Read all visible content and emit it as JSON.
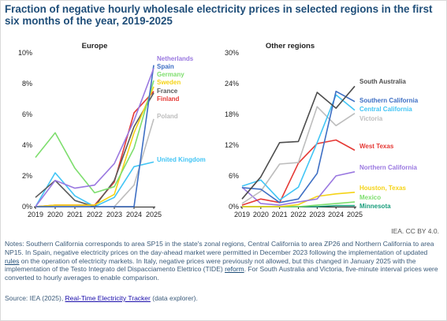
{
  "title": "Fraction of negative hourly wholesale electricity prices in selected regions in the first six months of the year, 2019-2025",
  "credit": "IEA. CC BY 4.0.",
  "notes": {
    "p1": "Notes: Southern California corresponds to area SP15 in the state's zonal regions, Central California to area ZP26 and Northern California to area NP15. In Spain, negative electricity prices on the day-ahead market were permitted in December 2023 following the implementation of updated ",
    "link1": "rules",
    "p2": " on the operation of electricity markets. In Italy, negative prices were previously not allowed, but this changed in January 2025 with the implementation of the Testo Integrato del Dispacciamento Elettrico (TIDE) ",
    "link2": "reform",
    "p3": ". For South Australia and Victoria, five-minute interval prices were converted to hourly averages to enable comparison."
  },
  "source": {
    "prefix": "Source: IEA (2025), ",
    "link": "Real-Time Electricity Tracker",
    "suffix": " (data explorer)."
  },
  "chart_data": [
    {
      "type": "line",
      "title": "Europe",
      "x": [
        2019,
        2020,
        2021,
        2022,
        2023,
        2024,
        2025
      ],
      "ylim": [
        0,
        10
      ],
      "yticks": [
        0,
        2,
        4,
        6,
        8,
        10
      ],
      "ytick_labels": [
        "0%",
        "2%",
        "4%",
        "6%",
        "8%",
        "10%"
      ],
      "y_unit": "%",
      "series": [
        {
          "name": "Netherlands",
          "color": "#9a78e0",
          "values": [
            0.0,
            1.7,
            1.2,
            1.4,
            2.8,
            5.6,
            9.0
          ]
        },
        {
          "name": "Spain",
          "color": "#3e6fc4",
          "values": [
            0.0,
            0.0,
            0.0,
            0.0,
            0.0,
            0.0,
            9.2
          ]
        },
        {
          "name": "Germany",
          "color": "#7ede6e",
          "values": [
            3.2,
            4.8,
            2.5,
            0.9,
            1.3,
            3.8,
            8.2
          ]
        },
        {
          "name": "Sweden",
          "color": "#f5d316",
          "values": [
            0.0,
            0.1,
            0.1,
            0.1,
            0.8,
            4.8,
            7.8
          ]
        },
        {
          "name": "France",
          "color": "#5a5a5a",
          "values": [
            0.6,
            1.7,
            0.4,
            0.0,
            1.7,
            5.2,
            7.4
          ]
        },
        {
          "name": "Finland",
          "color": "#e53935",
          "values": [
            0.0,
            0.1,
            0.1,
            0.1,
            1.6,
            6.1,
            7.5
          ]
        },
        {
          "name": "Poland",
          "color": "#bdbdbd",
          "values": [
            0.0,
            0.0,
            0.0,
            0.0,
            0.0,
            1.4,
            5.7
          ]
        },
        {
          "name": "United Kingdom",
          "color": "#42c5f5",
          "values": [
            0.0,
            2.2,
            0.7,
            0.0,
            0.6,
            2.6,
            2.9
          ]
        }
      ]
    },
    {
      "type": "line",
      "title": "Other regions",
      "x": [
        2019,
        2020,
        2021,
        2022,
        2023,
        2024,
        2025
      ],
      "ylim": [
        0,
        30
      ],
      "yticks": [
        0,
        6,
        12,
        18,
        24,
        30
      ],
      "ytick_labels": [
        "0%",
        "6%",
        "12%",
        "18%",
        "24%",
        "30%"
      ],
      "y_unit": "%",
      "series": [
        {
          "name": "South Australia",
          "color": "#4d4d4d",
          "values": [
            1.5,
            5.8,
            12.5,
            12.7,
            22.3,
            19.2,
            23.5
          ]
        },
        {
          "name": "Southern California",
          "color": "#3e6fc4",
          "values": [
            3.7,
            3.4,
            0.8,
            1.5,
            6.5,
            22.5,
            20.5
          ]
        },
        {
          "name": "Central California",
          "color": "#42c5f5",
          "values": [
            4.0,
            5.2,
            1.3,
            3.8,
            12.5,
            21.8,
            18.8
          ]
        },
        {
          "name": "Victoria",
          "color": "#bdbdbd",
          "values": [
            0.6,
            3.0,
            8.3,
            8.6,
            19.5,
            15.8,
            18.2
          ]
        },
        {
          "name": "West Texas",
          "color": "#e53935",
          "values": [
            0.3,
            1.5,
            0.8,
            8.5,
            12.3,
            13.0,
            11.0
          ]
        },
        {
          "name": "Northern California",
          "color": "#9a78e0",
          "values": [
            3.8,
            0.6,
            0.3,
            0.9,
            1.5,
            6.0,
            6.8
          ]
        },
        {
          "name": "Houston, Texas",
          "color": "#f5d316",
          "values": [
            0.0,
            0.0,
            0.0,
            0.4,
            2.0,
            2.5,
            2.8
          ]
        },
        {
          "name": "Mexico",
          "color": "#7ede6e",
          "values": [
            0.0,
            0.0,
            0.0,
            0.0,
            0.3,
            0.6,
            0.9
          ]
        },
        {
          "name": "Minnesota",
          "color": "#1a9e7c",
          "values": [
            0.0,
            0.0,
            0.0,
            0.0,
            0.0,
            0.2,
            0.2
          ]
        }
      ]
    }
  ]
}
